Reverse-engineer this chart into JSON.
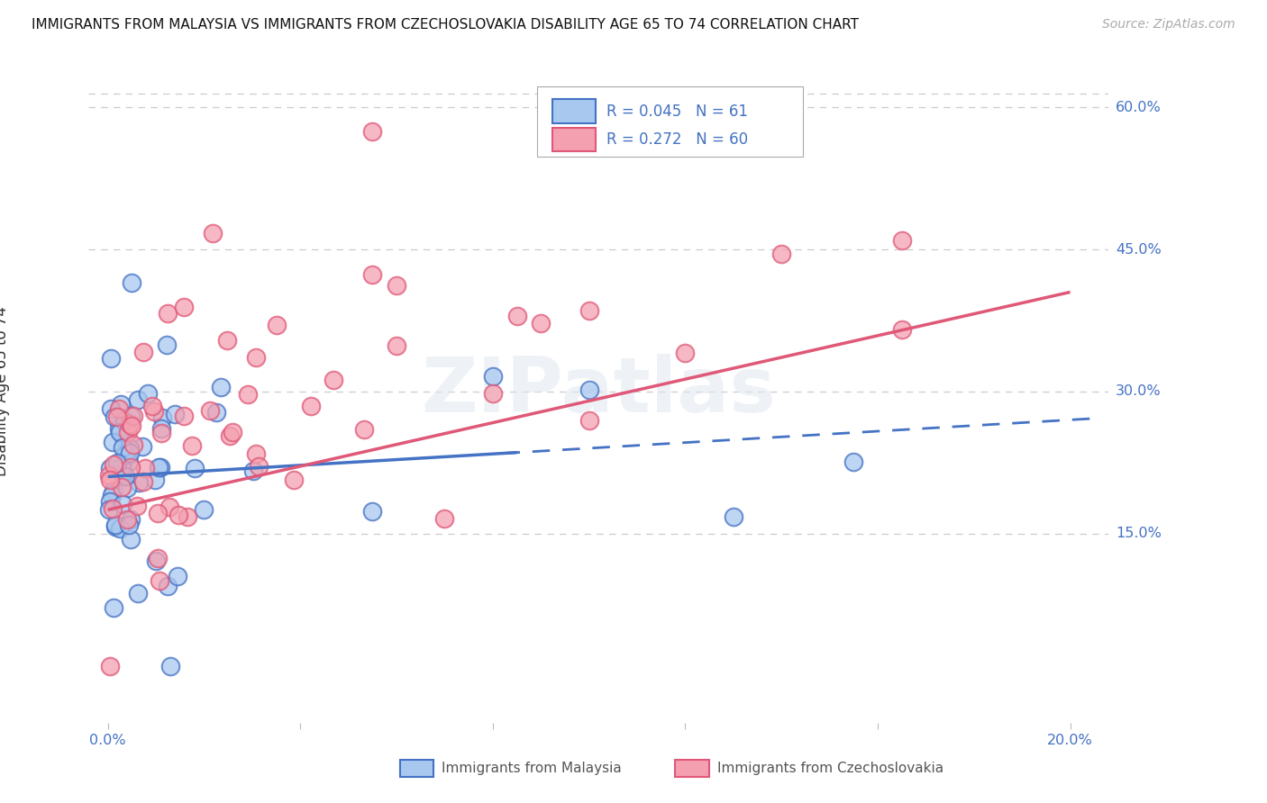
{
  "title": "IMMIGRANTS FROM MALAYSIA VS IMMIGRANTS FROM CZECHOSLOVAKIA DISABILITY AGE 65 TO 74 CORRELATION CHART",
  "source": "Source: ZipAtlas.com",
  "ylabel": "Disability Age 65 to 74",
  "color_malaysia": "#A8C8F0",
  "color_czech": "#F4A0B0",
  "color_malaysia_line": "#4472C4",
  "color_czech_line": "#E05878",
  "watermark": "ZIPatlas",
  "label_malaysia": "Immigrants from Malaysia",
  "label_czech": "Immigrants from Czechoslovakia",
  "R_malaysia": 0.045,
  "N_malaysia": 61,
  "R_czech": 0.272,
  "N_czech": 60,
  "xlim": [
    0.0,
    0.2
  ],
  "ylim": [
    -0.05,
    0.65
  ],
  "yticks": [
    0.15,
    0.3,
    0.45,
    0.6
  ],
  "ytick_labels": [
    "15.0%",
    "30.0%",
    "45.0%",
    "60.0%"
  ],
  "grid_color": "#CCCCCC",
  "axis_label_color": "#4472C4",
  "text_color": "#333333",
  "malaysia_intercept": 0.21,
  "malaysia_slope": 0.3,
  "czech_intercept": 0.175,
  "czech_slope": 1.15
}
